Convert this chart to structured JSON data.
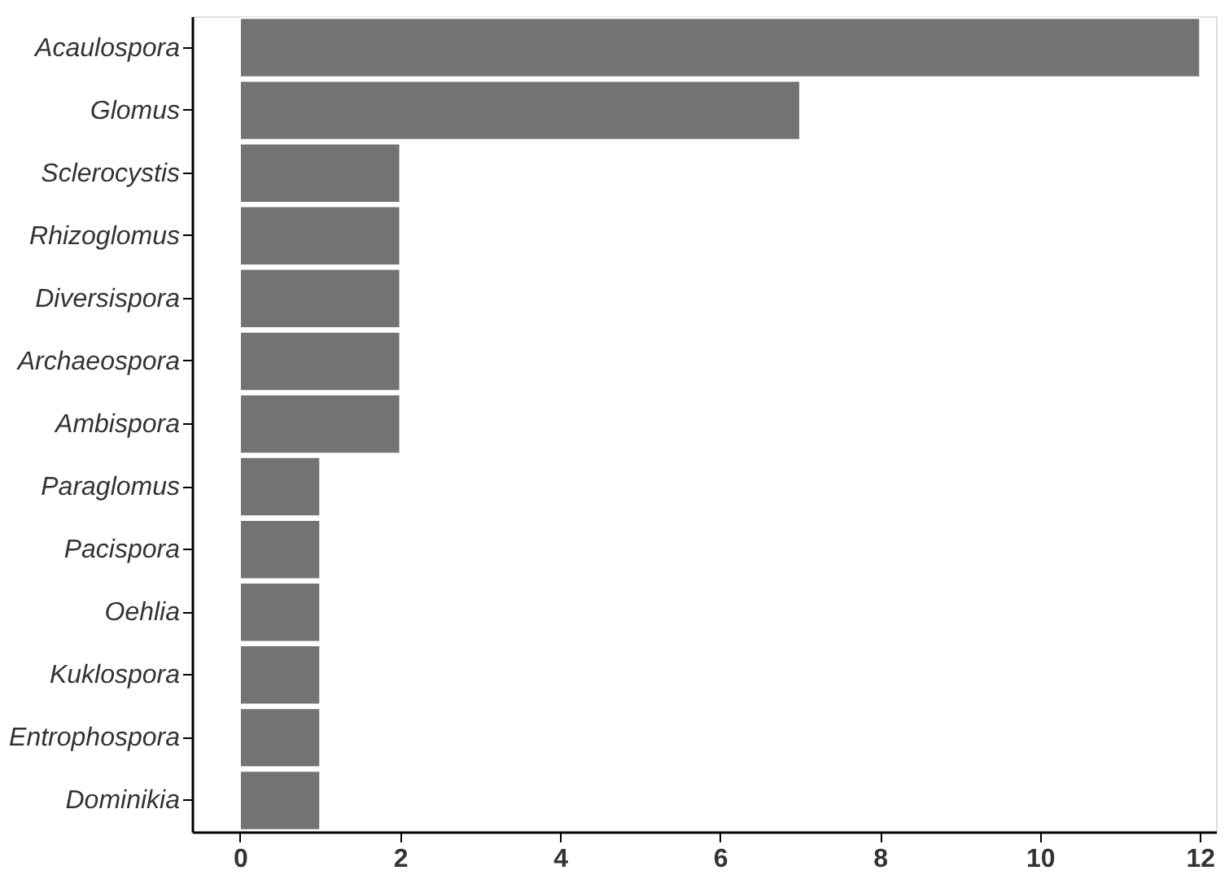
{
  "chart_data": {
    "type": "bar",
    "orientation": "horizontal",
    "categories": [
      "Acaulospora",
      "Glomus",
      "Sclerocystis",
      "Rhizoglomus",
      "Diversispora",
      "Archaeospora",
      "Ambispora",
      "Paraglomus",
      "Pacispora",
      "Oehlia",
      "Kuklospora",
      "Entrophospora",
      "Dominikia"
    ],
    "values": [
      12,
      7,
      2,
      2,
      2,
      2,
      2,
      1,
      1,
      1,
      1,
      1,
      1
    ],
    "color": "#737373",
    "xlim": [
      -0.6,
      12.2
    ],
    "xticks": [
      0,
      2,
      4,
      6,
      8,
      10,
      12
    ],
    "grid": false
  }
}
